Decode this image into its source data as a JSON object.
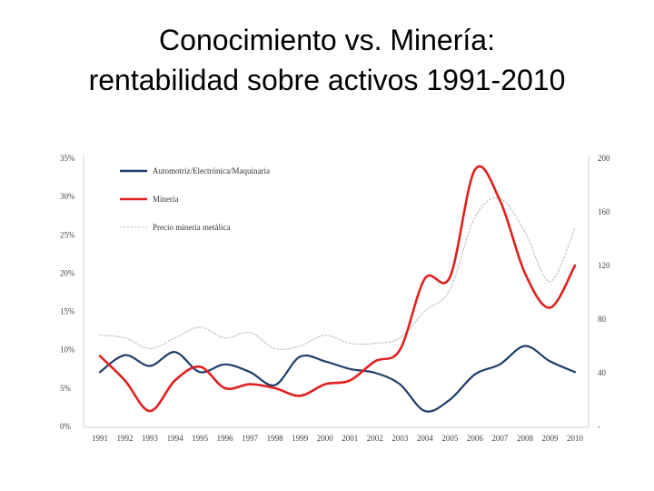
{
  "title": {
    "line1": "Conocimiento vs. Minería:",
    "line2": "rentabilidad sobre activos 1991-2010"
  },
  "chart_data": {
    "type": "line",
    "title": "Conocimiento vs. Minería: rentabilidad sobre activos 1991-2010",
    "x": [
      "1991",
      "1992",
      "1993",
      "1994",
      "1995",
      "1996",
      "1997",
      "1998",
      "1999",
      "2000",
      "2001",
      "2002",
      "2003",
      "2004",
      "2005",
      "2006",
      "2007",
      "2008",
      "2009",
      "2010"
    ],
    "y_left": {
      "ylim": [
        0,
        35
      ],
      "tick_values": [
        0,
        5,
        10,
        15,
        20,
        25,
        30,
        35
      ],
      "tick_labels": [
        "0%",
        "5%",
        "10%",
        "15%",
        "20%",
        "25%",
        "30%",
        "35%"
      ]
    },
    "y_right": {
      "ylim": [
        0,
        200
      ],
      "tick_values": [
        0,
        40,
        80,
        120,
        160,
        200
      ],
      "tick_labels": [
        "-",
        "40",
        "80",
        "120",
        "160",
        "200"
      ]
    },
    "series": [
      {
        "name": "Automotriz/Electrónica/Maquinaria",
        "axis": "left",
        "color": "#1f3d6b",
        "style": "solid",
        "values": [
          7.1,
          9.3,
          7.9,
          9.7,
          7.1,
          8.1,
          7.1,
          5.4,
          9.1,
          8.5,
          7.5,
          7.0,
          5.5,
          2.0,
          3.5,
          6.8,
          8.1,
          10.5,
          8.5,
          7.1
        ]
      },
      {
        "name": "Minería",
        "axis": "left",
        "color": "#e02020",
        "style": "solid",
        "values": [
          9.2,
          6.0,
          2.0,
          6.0,
          7.8,
          5.0,
          5.5,
          5.0,
          4.0,
          5.5,
          6.0,
          8.5,
          10.0,
          19.3,
          19.5,
          33.5,
          29.5,
          20.0,
          15.5,
          21.0
        ]
      },
      {
        "name": "Precio minería metálica",
        "axis": "right",
        "color": "#b8b8b8",
        "style": "dotted",
        "values": [
          68,
          66,
          58,
          66,
          74,
          66,
          70,
          58,
          60,
          68,
          62,
          62,
          66,
          86,
          102,
          156,
          170,
          145,
          108,
          148
        ]
      }
    ],
    "legend_position": "top-left",
    "grid": false
  }
}
